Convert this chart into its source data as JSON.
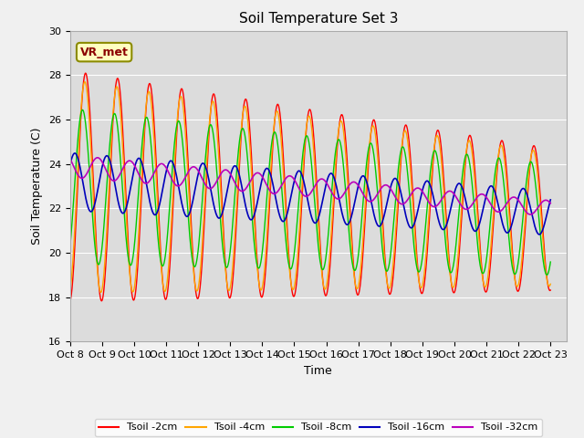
{
  "title": "Soil Temperature Set 3",
  "xlabel": "Time",
  "ylabel": "Soil Temperature (C)",
  "ylim": [
    16,
    30
  ],
  "yticks": [
    16,
    18,
    20,
    22,
    24,
    26,
    28,
    30
  ],
  "xlim_start": 0,
  "xlim_end": 15.5,
  "xtick_labels": [
    "Oct 8",
    "Oct 9",
    "Oct 10",
    "Oct 11",
    "Oct 12",
    "Oct 13",
    "Oct 14",
    "Oct 15",
    "Oct 16",
    "Oct 17",
    "Oct 18",
    "Oct 19",
    "Oct 20",
    "Oct 21",
    "Oct 22",
    "Oct 23"
  ],
  "annotation": "VR_met",
  "colors": {
    "Tsoil -2cm": "#FF0000",
    "Tsoil -4cm": "#FFA500",
    "Tsoil -8cm": "#00CC00",
    "Tsoil -16cm": "#0000BB",
    "Tsoil -32cm": "#BB00BB"
  },
  "plot_bg": "#DCDCDC",
  "fig_bg": "#F0F0F0",
  "title_fontsize": 11,
  "axis_fontsize": 9,
  "tick_fontsize": 8
}
